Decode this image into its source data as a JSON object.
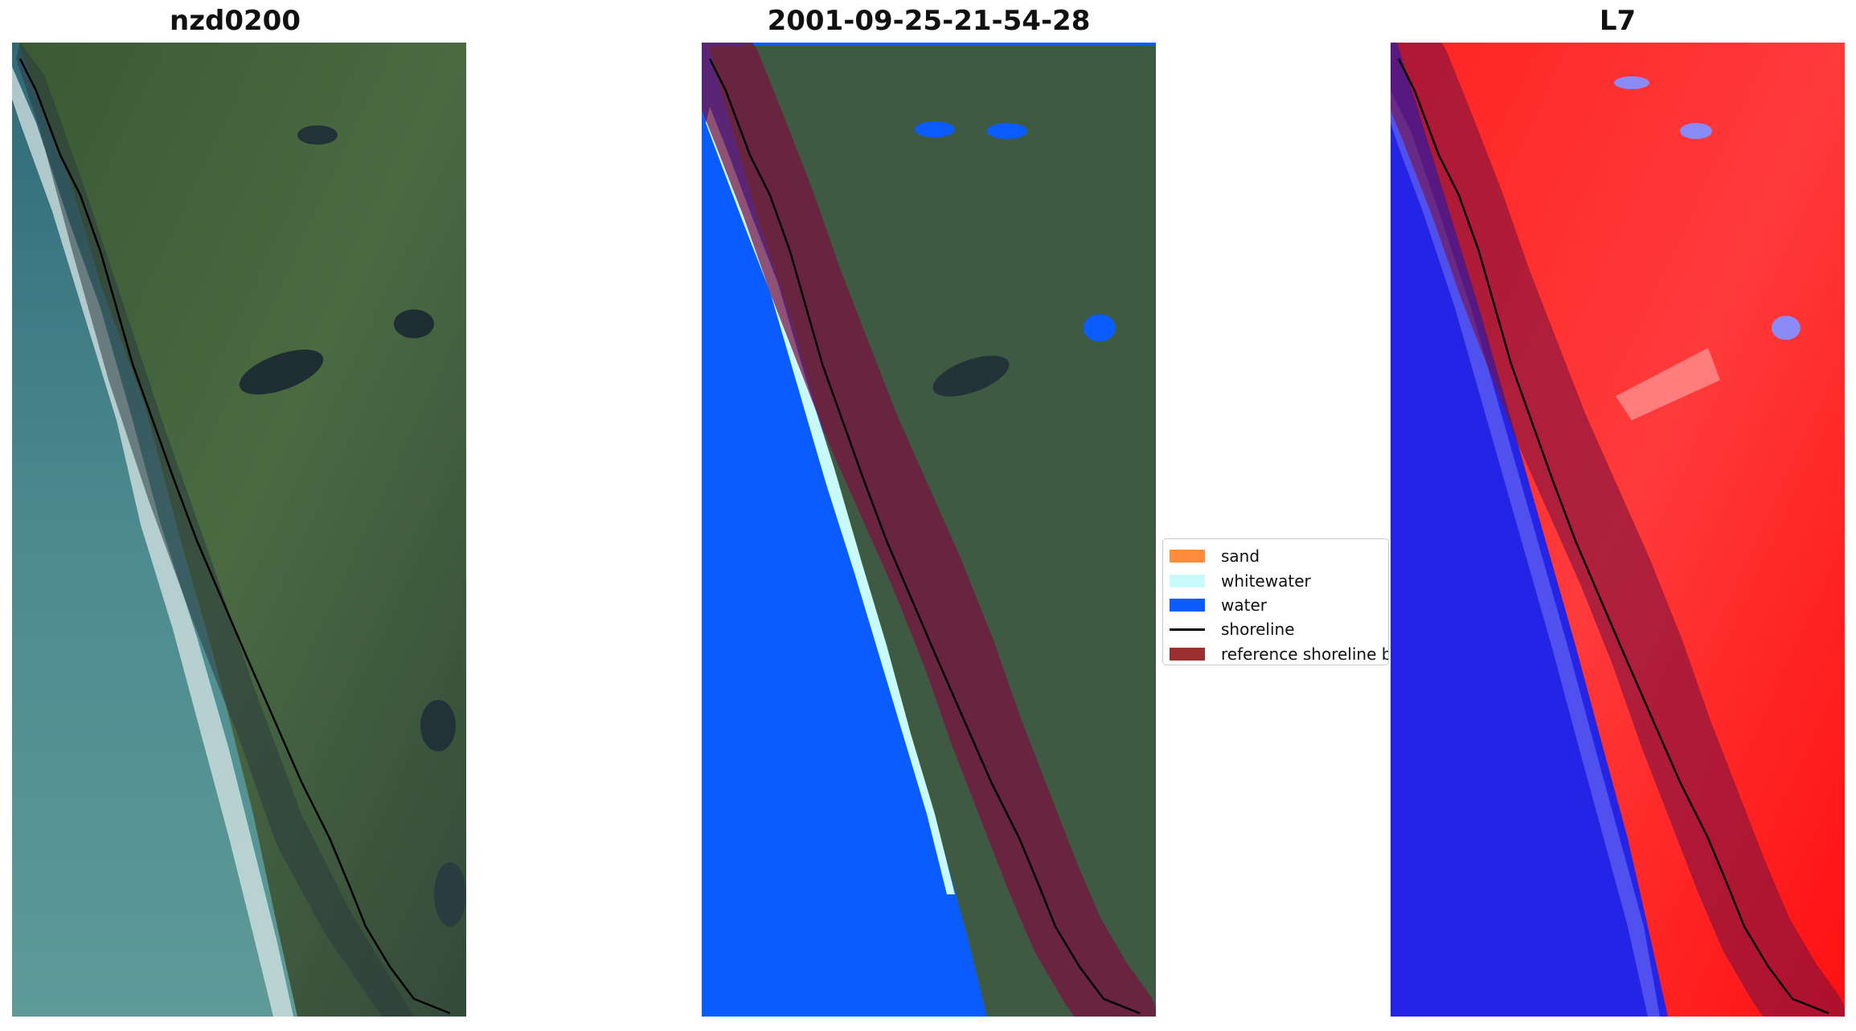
{
  "panels": [
    {
      "title": "nzd0200"
    },
    {
      "title": "2001-09-25-21-54-28"
    },
    {
      "title": "L7"
    }
  ],
  "legend": {
    "items": [
      {
        "label": "sand",
        "color": "#ff8c3a",
        "kind": "patch"
      },
      {
        "label": "whitewater",
        "color": "#c8fafa",
        "kind": "patch"
      },
      {
        "label": "water",
        "color": "#0a5cff",
        "kind": "patch"
      },
      {
        "label": "shoreline",
        "color": "#000000",
        "kind": "line"
      },
      {
        "label": "reference shoreline b",
        "color": "#9b2f2f",
        "kind": "patch"
      }
    ]
  },
  "colors": {
    "ocean": "#3e7c86",
    "land": "#3f5a3c",
    "water_class": "#0a5cff",
    "buffer": "#7a1040",
    "ndwi_land": "#ff1a1a",
    "ndwi_water": "#2020f0"
  }
}
